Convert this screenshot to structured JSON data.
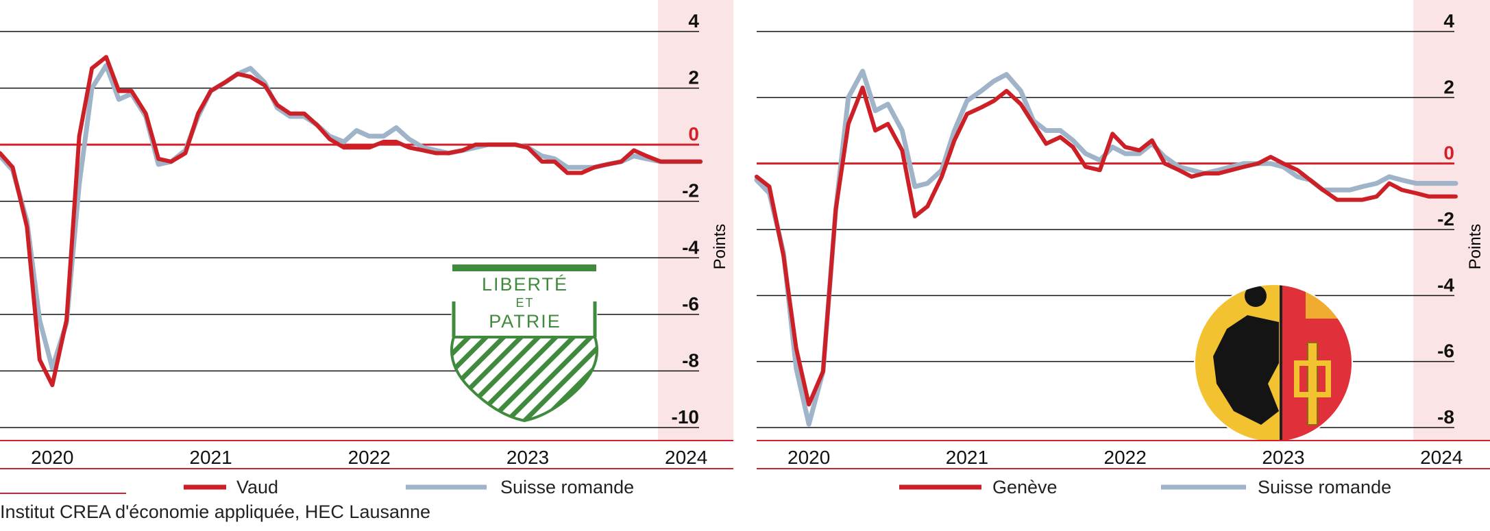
{
  "source": "Institut CREA d'économie appliquée, HEC Lausanne",
  "colors": {
    "region": "#cc1f26",
    "suisse": "#9fb4c8",
    "zero": "#d4202a",
    "band": "#fae4e6"
  },
  "chart_data": [
    {
      "type": "line",
      "unit_label": "Points",
      "ylim": [
        -10,
        4
      ],
      "yticks": [
        4,
        2,
        0,
        -2,
        -4,
        -6,
        -8,
        -10
      ],
      "xticks": [
        2020,
        2021,
        2022,
        2023,
        2024
      ],
      "emblem": "vaud-coat-of-arms",
      "emblem_text": [
        "LIBERTÉ",
        "ET",
        "PATRIE"
      ],
      "series": [
        {
          "name": "Vaud",
          "x": [
            2019.75,
            2019.83,
            2019.92,
            2020.0,
            2020.08,
            2020.17,
            2020.25,
            2020.33,
            2020.42,
            2020.5,
            2020.58,
            2020.67,
            2020.75,
            2020.83,
            2020.92,
            2021.0,
            2021.08,
            2021.17,
            2021.25,
            2021.33,
            2021.42,
            2021.5,
            2021.58,
            2021.67,
            2021.75,
            2021.83,
            2021.92,
            2022.0,
            2022.08,
            2022.17,
            2022.25,
            2022.33,
            2022.42,
            2022.5,
            2022.58,
            2022.67,
            2022.75,
            2022.83,
            2022.92,
            2023.0,
            2023.08,
            2023.17,
            2023.25,
            2023.33,
            2023.42,
            2023.5,
            2023.58,
            2023.67,
            2023.75,
            2023.83,
            2023.92,
            2024.0,
            2024.08,
            2024.17
          ],
          "y": [
            -0.3,
            -0.8,
            -2.9,
            -7.6,
            -8.5,
            -6.2,
            0.3,
            2.7,
            3.1,
            1.9,
            1.9,
            1.1,
            -0.5,
            -0.6,
            -0.3,
            1.1,
            1.9,
            2.2,
            2.5,
            2.4,
            2.1,
            1.4,
            1.1,
            1.1,
            0.7,
            0.2,
            -0.1,
            -0.1,
            -0.1,
            0.1,
            0.1,
            -0.1,
            -0.2,
            -0.3,
            -0.3,
            -0.2,
            0.0,
            0.0,
            0.0,
            0.0,
            -0.1,
            -0.6,
            -0.6,
            -1.0,
            -1.0,
            -0.8,
            -0.7,
            -0.6,
            -0.2,
            -0.4,
            -0.6,
            -0.6,
            -0.6,
            -0.6
          ]
        },
        {
          "name": "Suisse romande",
          "x": [
            2019.75,
            2019.83,
            2019.92,
            2020.0,
            2020.08,
            2020.17,
            2020.25,
            2020.33,
            2020.42,
            2020.5,
            2020.58,
            2020.67,
            2020.75,
            2020.83,
            2020.92,
            2021.0,
            2021.08,
            2021.17,
            2021.25,
            2021.33,
            2021.42,
            2021.5,
            2021.58,
            2021.67,
            2021.75,
            2021.83,
            2021.92,
            2022.0,
            2022.08,
            2022.17,
            2022.25,
            2022.33,
            2022.42,
            2022.5,
            2022.58,
            2022.67,
            2022.75,
            2022.83,
            2022.92,
            2023.0,
            2023.08,
            2023.17,
            2023.25,
            2023.33,
            2023.42,
            2023.5,
            2023.58,
            2023.67,
            2023.75,
            2023.83,
            2023.92,
            2024.0,
            2024.08,
            2024.17
          ],
          "y": [
            -0.4,
            -0.9,
            -2.7,
            -6.2,
            -7.9,
            -6.3,
            -1.4,
            2.0,
            2.8,
            1.6,
            1.8,
            1.0,
            -0.7,
            -0.6,
            -0.2,
            1.0,
            1.9,
            2.2,
            2.5,
            2.7,
            2.2,
            1.3,
            1.0,
            1.0,
            0.7,
            0.3,
            0.1,
            0.5,
            0.3,
            0.3,
            0.6,
            0.2,
            -0.1,
            -0.2,
            -0.3,
            -0.2,
            -0.1,
            0.0,
            0.0,
            0.0,
            -0.1,
            -0.4,
            -0.5,
            -0.8,
            -0.8,
            -0.8,
            -0.7,
            -0.6,
            -0.4,
            -0.5,
            -0.6,
            -0.6,
            -0.6,
            -0.6
          ]
        }
      ]
    },
    {
      "type": "line",
      "unit_label": "Points",
      "ylim": [
        -8,
        4
      ],
      "yticks": [
        4,
        2,
        0,
        -2,
        -4,
        -6,
        -8
      ],
      "xticks": [
        2020,
        2021,
        2022,
        2023,
        2024
      ],
      "emblem": "geneva-coat-of-arms",
      "series": [
        {
          "name": "Genève",
          "x": [
            2019.75,
            2019.83,
            2019.92,
            2020.0,
            2020.08,
            2020.17,
            2020.25,
            2020.33,
            2020.42,
            2020.5,
            2020.58,
            2020.67,
            2020.75,
            2020.83,
            2020.92,
            2021.0,
            2021.08,
            2021.17,
            2021.25,
            2021.33,
            2021.42,
            2021.5,
            2021.58,
            2021.67,
            2021.75,
            2021.83,
            2021.92,
            2022.0,
            2022.08,
            2022.17,
            2022.25,
            2022.33,
            2022.42,
            2022.5,
            2022.58,
            2022.67,
            2022.75,
            2022.83,
            2022.92,
            2023.0,
            2023.08,
            2023.17,
            2023.25,
            2023.33,
            2023.42,
            2023.5,
            2023.58,
            2023.67,
            2023.75,
            2023.83,
            2023.92,
            2024.0,
            2024.08,
            2024.17
          ],
          "y": [
            -0.4,
            -0.7,
            -2.8,
            -5.6,
            -7.3,
            -6.3,
            -1.4,
            1.2,
            2.3,
            1.0,
            1.2,
            0.4,
            -1.6,
            -1.3,
            -0.4,
            0.7,
            1.5,
            1.7,
            1.9,
            2.2,
            1.8,
            1.2,
            0.6,
            0.8,
            0.5,
            -0.1,
            -0.2,
            0.9,
            0.5,
            0.4,
            0.7,
            0.0,
            -0.2,
            -0.4,
            -0.3,
            -0.3,
            -0.2,
            -0.1,
            0.0,
            0.2,
            0.0,
            -0.2,
            -0.5,
            -0.8,
            -1.1,
            -1.1,
            -1.1,
            -1.0,
            -0.6,
            -0.8,
            -0.9,
            -1.0,
            -1.0,
            -1.0
          ]
        },
        {
          "name": "Suisse romande",
          "x": [
            2019.75,
            2019.83,
            2019.92,
            2020.0,
            2020.08,
            2020.17,
            2020.25,
            2020.33,
            2020.42,
            2020.5,
            2020.58,
            2020.67,
            2020.75,
            2020.83,
            2020.92,
            2021.0,
            2021.08,
            2021.17,
            2021.25,
            2021.33,
            2021.42,
            2021.5,
            2021.58,
            2021.67,
            2021.75,
            2021.83,
            2021.92,
            2022.0,
            2022.08,
            2022.17,
            2022.25,
            2022.33,
            2022.42,
            2022.5,
            2022.58,
            2022.67,
            2022.75,
            2022.83,
            2022.92,
            2023.0,
            2023.08,
            2023.17,
            2023.25,
            2023.33,
            2023.42,
            2023.5,
            2023.58,
            2023.67,
            2023.75,
            2023.83,
            2023.92,
            2024.0,
            2024.08,
            2024.17
          ],
          "y": [
            -0.5,
            -0.9,
            -2.7,
            -6.2,
            -7.9,
            -6.3,
            -1.4,
            2.0,
            2.8,
            1.6,
            1.8,
            1.0,
            -0.7,
            -0.6,
            -0.2,
            1.0,
            1.9,
            2.2,
            2.5,
            2.7,
            2.2,
            1.3,
            1.0,
            1.0,
            0.7,
            0.3,
            0.1,
            0.5,
            0.3,
            0.3,
            0.6,
            0.2,
            -0.1,
            -0.2,
            -0.3,
            -0.2,
            -0.1,
            0.0,
            0.0,
            0.0,
            -0.1,
            -0.4,
            -0.5,
            -0.8,
            -0.8,
            -0.8,
            -0.7,
            -0.6,
            -0.4,
            -0.5,
            -0.6,
            -0.6,
            -0.6,
            -0.6
          ]
        }
      ]
    }
  ]
}
